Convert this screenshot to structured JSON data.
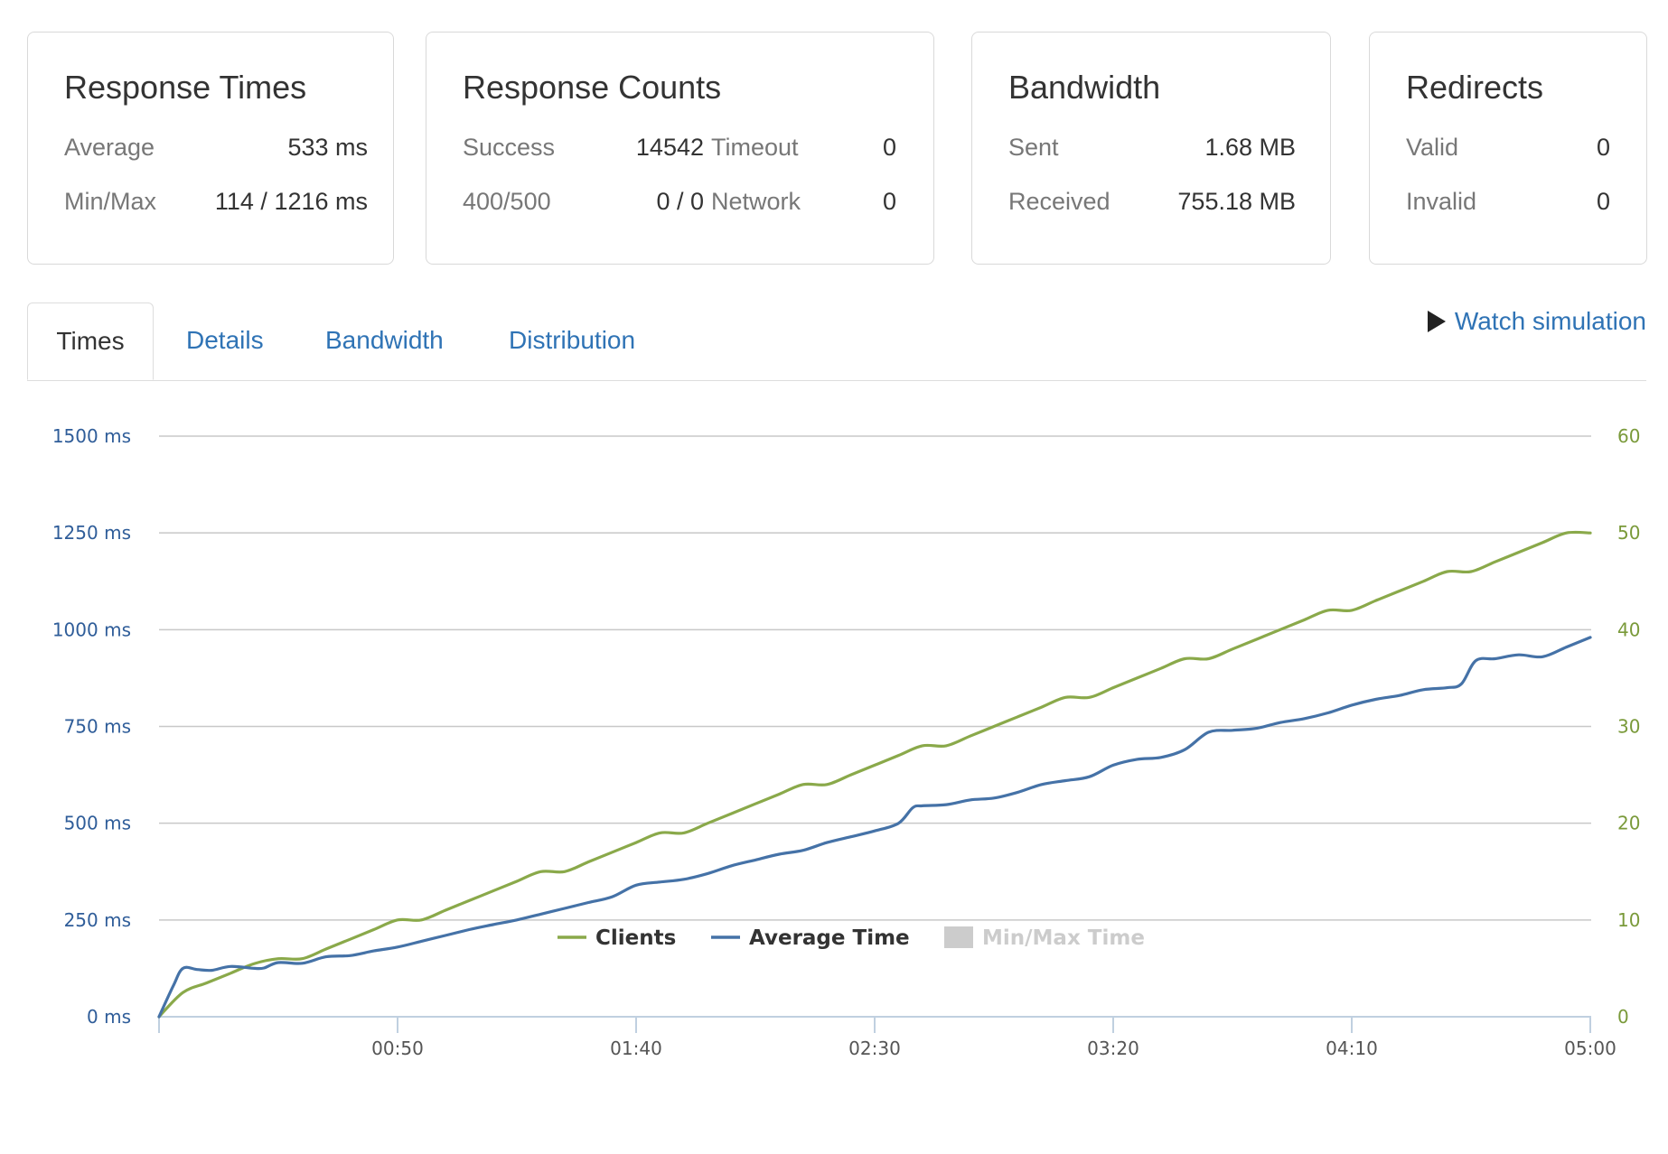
{
  "cards": {
    "response_times": {
      "title": "Response Times",
      "avg_label": "Average",
      "avg_value": "533 ms",
      "minmax_label": "Min/Max",
      "minmax_value": "114 / 1216 ms"
    },
    "response_counts": {
      "title": "Response Counts",
      "success_label": "Success",
      "success_value": "14542",
      "timeout_label": "Timeout",
      "timeout_value": "0",
      "errors_label": "400/500",
      "errors_value": "0 / 0",
      "network_label": "Network",
      "network_value": "0"
    },
    "bandwidth": {
      "title": "Bandwidth",
      "sent_label": "Sent",
      "sent_value": "1.68 MB",
      "received_label": "Received",
      "received_value": "755.18 MB"
    },
    "redirects": {
      "title": "Redirects",
      "valid_label": "Valid",
      "valid_value": "0",
      "invalid_label": "Invalid",
      "invalid_value": "0"
    }
  },
  "tabs": [
    {
      "label": "Times",
      "active": true
    },
    {
      "label": "Details",
      "active": false
    },
    {
      "label": "Bandwidth",
      "active": false
    },
    {
      "label": "Distribution",
      "active": false
    }
  ],
  "watch_label": "Watch simulation",
  "colors": {
    "clients": "#8aa94a",
    "avg_time": "#4572a7",
    "minmax": "#cccccc",
    "grid": "#c8c8c8"
  },
  "chart_data": {
    "type": "line",
    "x_unit": "seconds",
    "xlim": [
      0,
      300
    ],
    "x_ticks": [
      50,
      100,
      150,
      200,
      250,
      300
    ],
    "x_tick_labels": [
      "00:50",
      "01:40",
      "02:30",
      "03:20",
      "04:10",
      "05:00"
    ],
    "y_left": {
      "ticks": [
        0,
        250,
        500,
        750,
        1000,
        1250,
        1500
      ],
      "tick_labels": [
        "0 ms",
        "250 ms",
        "500 ms",
        "750 ms",
        "1000 ms",
        "1250 ms",
        "1500 ms"
      ],
      "lim": [
        0,
        1500
      ]
    },
    "y_right": {
      "ticks": [
        0,
        10,
        20,
        30,
        40,
        50,
        60
      ],
      "tick_labels": [
        "0",
        "10",
        "20",
        "30",
        "40",
        "50",
        "60"
      ],
      "lim": [
        0,
        60
      ]
    },
    "grid": true,
    "legend_position": "bottom-center",
    "series": [
      {
        "name": "Clients",
        "axis": "right",
        "points": [
          [
            0,
            0
          ],
          [
            5,
            2.5
          ],
          [
            10,
            3.5
          ],
          [
            15,
            4.5
          ],
          [
            20,
            5.5
          ],
          [
            25,
            6
          ],
          [
            30,
            6
          ],
          [
            35,
            7
          ],
          [
            40,
            8
          ],
          [
            45,
            9
          ],
          [
            50,
            10
          ],
          [
            55,
            10
          ],
          [
            60,
            11
          ],
          [
            65,
            12
          ],
          [
            70,
            13
          ],
          [
            75,
            14
          ],
          [
            80,
            15
          ],
          [
            85,
            15
          ],
          [
            90,
            16
          ],
          [
            95,
            17
          ],
          [
            100,
            18
          ],
          [
            105,
            19
          ],
          [
            110,
            19
          ],
          [
            115,
            20
          ],
          [
            120,
            21
          ],
          [
            125,
            22
          ],
          [
            130,
            23
          ],
          [
            135,
            24
          ],
          [
            140,
            24
          ],
          [
            145,
            25
          ],
          [
            150,
            26
          ],
          [
            155,
            27
          ],
          [
            160,
            28
          ],
          [
            165,
            28
          ],
          [
            170,
            29
          ],
          [
            175,
            30
          ],
          [
            180,
            31
          ],
          [
            185,
            32
          ],
          [
            190,
            33
          ],
          [
            195,
            33
          ],
          [
            200,
            34
          ],
          [
            205,
            35
          ],
          [
            210,
            36
          ],
          [
            215,
            37
          ],
          [
            220,
            37
          ],
          [
            225,
            38
          ],
          [
            230,
            39
          ],
          [
            235,
            40
          ],
          [
            240,
            41
          ],
          [
            245,
            42
          ],
          [
            250,
            42
          ],
          [
            255,
            43
          ],
          [
            260,
            44
          ],
          [
            265,
            45
          ],
          [
            270,
            46
          ],
          [
            275,
            46
          ],
          [
            280,
            47
          ],
          [
            285,
            48
          ],
          [
            290,
            49
          ],
          [
            295,
            50
          ],
          [
            300,
            50
          ]
        ]
      },
      {
        "name": "Average Time",
        "axis": "left",
        "points": [
          [
            0,
            0
          ],
          [
            3,
            80
          ],
          [
            5,
            125
          ],
          [
            8,
            122
          ],
          [
            11,
            120
          ],
          [
            15,
            130
          ],
          [
            20,
            125
          ],
          [
            22,
            126
          ],
          [
            25,
            140
          ],
          [
            30,
            138
          ],
          [
            35,
            155
          ],
          [
            40,
            158
          ],
          [
            45,
            170
          ],
          [
            50,
            180
          ],
          [
            55,
            195
          ],
          [
            60,
            210
          ],
          [
            65,
            225
          ],
          [
            70,
            238
          ],
          [
            75,
            250
          ],
          [
            80,
            265
          ],
          [
            85,
            280
          ],
          [
            90,
            295
          ],
          [
            95,
            310
          ],
          [
            100,
            340
          ],
          [
            105,
            348
          ],
          [
            110,
            355
          ],
          [
            115,
            370
          ],
          [
            120,
            390
          ],
          [
            125,
            405
          ],
          [
            130,
            420
          ],
          [
            135,
            430
          ],
          [
            140,
            450
          ],
          [
            145,
            465
          ],
          [
            150,
            480
          ],
          [
            155,
            500
          ],
          [
            158,
            540
          ],
          [
            160,
            545
          ],
          [
            165,
            548
          ],
          [
            170,
            560
          ],
          [
            175,
            565
          ],
          [
            180,
            580
          ],
          [
            185,
            600
          ],
          [
            190,
            610
          ],
          [
            195,
            620
          ],
          [
            200,
            650
          ],
          [
            205,
            665
          ],
          [
            210,
            670
          ],
          [
            215,
            690
          ],
          [
            220,
            735
          ],
          [
            225,
            740
          ],
          [
            230,
            745
          ],
          [
            235,
            760
          ],
          [
            240,
            770
          ],
          [
            245,
            785
          ],
          [
            250,
            805
          ],
          [
            255,
            820
          ],
          [
            260,
            830
          ],
          [
            265,
            845
          ],
          [
            270,
            850
          ],
          [
            273,
            860
          ],
          [
            276,
            920
          ],
          [
            280,
            925
          ],
          [
            285,
            935
          ],
          [
            290,
            930
          ],
          [
            295,
            955
          ],
          [
            300,
            980
          ]
        ]
      }
    ],
    "legend": [
      {
        "label": "Clients",
        "enabled": true
      },
      {
        "label": "Average Time",
        "enabled": true
      },
      {
        "label": "Min/Max Time",
        "enabled": false
      }
    ]
  }
}
